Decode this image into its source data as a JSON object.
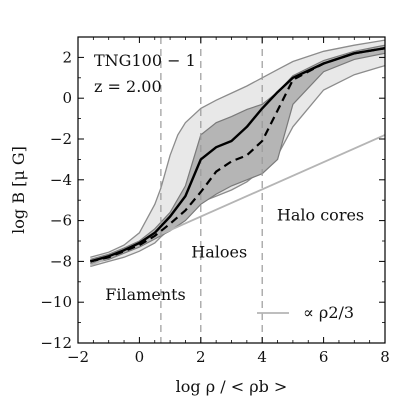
{
  "chart_data": {
    "type": "area",
    "title": "",
    "xlabel": "log ρ / < ρb >",
    "ylabel": "log B [μ G]",
    "xlim": [
      -2,
      8
    ],
    "ylim": [
      -12,
      3
    ],
    "xticks": [
      -2,
      0,
      2,
      4,
      6,
      8
    ],
    "yticks": [
      -12,
      -10,
      -8,
      -6,
      -4,
      -2,
      0,
      2
    ],
    "grid": false,
    "info_text": [
      "TNG100 − 1",
      "z = 2.00"
    ],
    "vertical_lines": [
      0.7,
      2.0,
      4.0
    ],
    "region_labels": [
      {
        "text": "Filaments",
        "x": 0.2,
        "y": -9.9
      },
      {
        "text": "Haloes",
        "x": 2.6,
        "y": -7.8
      },
      {
        "text": "Halo cores",
        "x": 5.9,
        "y": -6.0
      }
    ],
    "legend": {
      "position": "bottom-right",
      "label": "∝ ρ2/3"
    },
    "series": [
      {
        "role": "outer-band",
        "color": "#e8e8e8",
        "x": [
          -1.6,
          -1,
          -0.5,
          0,
          0.5,
          0.7,
          1,
          1.25,
          1.5,
          2,
          2.5,
          3,
          3.5,
          4,
          4.5,
          5,
          6,
          7,
          8
        ],
        "upper": [
          -7.8,
          -7.55,
          -7.2,
          -6.6,
          -5.2,
          -4.4,
          -2.8,
          -1.8,
          -1.2,
          -0.5,
          -0.1,
          0.25,
          0.6,
          1.0,
          1.4,
          1.8,
          2.3,
          2.6,
          2.85
        ],
        "lower": [
          -8.25,
          -8.0,
          -7.8,
          -7.5,
          -7.1,
          -6.8,
          -6.4,
          -6.0,
          -5.6,
          -5.1,
          -4.8,
          -4.5,
          -4.1,
          -3.5,
          -2.8,
          -1.4,
          0.4,
          1.15,
          1.6
        ]
      },
      {
        "role": "inner-band",
        "color": "#b5b5b5",
        "x": [
          -1.6,
          -1,
          -0.5,
          0,
          0.5,
          1,
          1.5,
          2,
          2.5,
          3,
          3.5,
          4,
          4.5,
          5,
          6,
          7,
          8
        ],
        "upper": [
          -7.9,
          -7.65,
          -7.35,
          -7.0,
          -6.4,
          -5.6,
          -4.3,
          -1.8,
          -1.2,
          -0.9,
          -0.55,
          -0.3,
          0.3,
          1.1,
          1.85,
          2.3,
          2.6
        ],
        "lower": [
          -8.1,
          -7.9,
          -7.6,
          -7.3,
          -6.9,
          -6.5,
          -6.0,
          -5.2,
          -4.7,
          -4.3,
          -4.0,
          -3.7,
          -3.0,
          -0.3,
          1.3,
          1.9,
          2.2
        ]
      },
      {
        "role": "median",
        "style": "solid",
        "color": "#000000",
        "x": [
          -1.6,
          -1,
          -0.5,
          0,
          0.5,
          1,
          1.5,
          2,
          2.5,
          3,
          3.5,
          4,
          4.5,
          5,
          6,
          7,
          8
        ],
        "values": [
          -8.0,
          -7.75,
          -7.45,
          -7.1,
          -6.6,
          -5.8,
          -4.8,
          -3.0,
          -2.4,
          -2.1,
          -1.4,
          -0.5,
          0.3,
          1.0,
          1.7,
          2.2,
          2.45
        ]
      },
      {
        "role": "mean",
        "style": "dashed",
        "color": "#000000",
        "x": [
          -1.6,
          -1,
          -0.5,
          0,
          0.5,
          1,
          1.5,
          2,
          2.5,
          3,
          3.5,
          4,
          4.5,
          5,
          6,
          7,
          8
        ],
        "values": [
          -8.0,
          -7.8,
          -7.5,
          -7.2,
          -6.75,
          -6.15,
          -5.5,
          -4.6,
          -3.6,
          -3.1,
          -2.8,
          -2.1,
          -0.6,
          0.9,
          1.7,
          2.2,
          2.45
        ]
      },
      {
        "role": "reference",
        "style": "solid",
        "color": "#b5b5b5",
        "x": [
          -1.6,
          8
        ],
        "values": [
          -8.2,
          -1.8
        ]
      }
    ]
  }
}
